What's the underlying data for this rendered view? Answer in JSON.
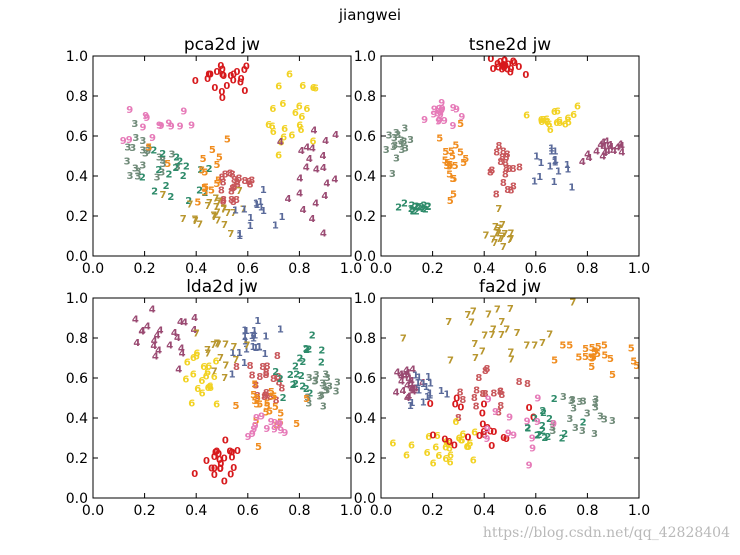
{
  "figure": {
    "suptitle": "jiangwei",
    "watermark": "https://blog.csdn.net/qq_42828404"
  },
  "class_colors": {
    "0": "#d7191c",
    "1": "#5a6a9a",
    "2": "#2e8b6a",
    "3": "#6f8a78",
    "4": "#9a4a72",
    "5": "#f08c1e",
    "6": "#f2d222",
    "7": "#b8962e",
    "8": "#c8565a",
    "9": "#e67ab8"
  },
  "chart_data": [
    {
      "type": "scatter",
      "title": "pca2d jw",
      "xlim": [
        0,
        1
      ],
      "ylim": [
        0,
        1
      ],
      "xticks": [
        "0.0",
        "0.2",
        "0.4",
        "0.6",
        "0.8",
        "1.0"
      ],
      "yticks": [
        "0.0",
        "0.2",
        "0.4",
        "0.6",
        "0.8",
        "1.0"
      ],
      "clusters": [
        {
          "label": "0",
          "cx": 0.52,
          "cy": 0.88,
          "sx": 0.06,
          "sy": 0.04,
          "n": 22
        },
        {
          "label": "6",
          "cx": 0.78,
          "cy": 0.65,
          "sx": 0.05,
          "sy": 0.12,
          "n": 22
        },
        {
          "label": "4",
          "cx": 0.85,
          "cy": 0.38,
          "sx": 0.06,
          "sy": 0.14,
          "n": 22
        },
        {
          "label": "3",
          "cx": 0.2,
          "cy": 0.47,
          "sx": 0.06,
          "sy": 0.07,
          "n": 22
        },
        {
          "label": "2",
          "cx": 0.33,
          "cy": 0.36,
          "sx": 0.08,
          "sy": 0.07,
          "n": 18
        },
        {
          "label": "9",
          "cx": 0.25,
          "cy": 0.65,
          "sx": 0.07,
          "sy": 0.06,
          "n": 14
        },
        {
          "label": "5",
          "cx": 0.4,
          "cy": 0.42,
          "sx": 0.08,
          "sy": 0.1,
          "n": 16
        },
        {
          "label": "8",
          "cx": 0.55,
          "cy": 0.33,
          "sx": 0.05,
          "sy": 0.06,
          "n": 22
        },
        {
          "label": "7",
          "cx": 0.48,
          "cy": 0.22,
          "sx": 0.06,
          "sy": 0.06,
          "n": 24
        },
        {
          "label": "1",
          "cx": 0.62,
          "cy": 0.2,
          "sx": 0.05,
          "sy": 0.05,
          "n": 14
        }
      ]
    },
    {
      "type": "scatter",
      "title": "tsne2d jw",
      "xlim": [
        0,
        1
      ],
      "ylim": [
        0,
        1
      ],
      "xticks": [
        "0.0",
        "0.2",
        "0.4",
        "0.6",
        "0.8",
        "1.0"
      ],
      "yticks": [
        "0.0",
        "0.2",
        "0.4",
        "0.6",
        "0.8",
        "1.0"
      ],
      "clusters": [
        {
          "label": "0",
          "cx": 0.48,
          "cy": 0.94,
          "sx": 0.03,
          "sy": 0.025,
          "n": 22
        },
        {
          "label": "9",
          "cx": 0.23,
          "cy": 0.69,
          "sx": 0.03,
          "sy": 0.035,
          "n": 16
        },
        {
          "label": "6",
          "cx": 0.68,
          "cy": 0.68,
          "sx": 0.04,
          "sy": 0.03,
          "n": 18
        },
        {
          "label": "3",
          "cx": 0.07,
          "cy": 0.53,
          "sx": 0.025,
          "sy": 0.04,
          "n": 16
        },
        {
          "label": "5",
          "cx": 0.28,
          "cy": 0.47,
          "sx": 0.03,
          "sy": 0.08,
          "n": 20
        },
        {
          "label": "8",
          "cx": 0.48,
          "cy": 0.42,
          "sx": 0.035,
          "sy": 0.06,
          "n": 20
        },
        {
          "label": "1",
          "cx": 0.65,
          "cy": 0.43,
          "sx": 0.04,
          "sy": 0.04,
          "n": 16
        },
        {
          "label": "4",
          "cx": 0.88,
          "cy": 0.51,
          "sx": 0.05,
          "sy": 0.03,
          "n": 18
        },
        {
          "label": "2",
          "cx": 0.14,
          "cy": 0.23,
          "sx": 0.035,
          "sy": 0.02,
          "n": 16
        },
        {
          "label": "7",
          "cx": 0.47,
          "cy": 0.09,
          "sx": 0.03,
          "sy": 0.04,
          "n": 18
        }
      ]
    },
    {
      "type": "scatter",
      "title": "lda2d jw",
      "xlim": [
        0,
        1
      ],
      "ylim": [
        0,
        1
      ],
      "xticks": [
        "0.0",
        "0.2",
        "0.4",
        "0.6",
        "0.8",
        "1.0"
      ],
      "yticks": [
        "0.0",
        "0.2",
        "0.4",
        "0.6",
        "0.8",
        "1.0"
      ],
      "clusters": [
        {
          "label": "4",
          "cx": 0.25,
          "cy": 0.76,
          "sx": 0.09,
          "sy": 0.08,
          "n": 22
        },
        {
          "label": "6",
          "cx": 0.42,
          "cy": 0.56,
          "sx": 0.04,
          "sy": 0.07,
          "n": 20
        },
        {
          "label": "0",
          "cx": 0.5,
          "cy": 0.15,
          "sx": 0.04,
          "sy": 0.05,
          "n": 22
        },
        {
          "label": "1",
          "cx": 0.63,
          "cy": 0.78,
          "sx": 0.04,
          "sy": 0.07,
          "n": 22
        },
        {
          "label": "8",
          "cx": 0.67,
          "cy": 0.58,
          "sx": 0.04,
          "sy": 0.06,
          "n": 20
        },
        {
          "label": "2",
          "cx": 0.82,
          "cy": 0.63,
          "sx": 0.05,
          "sy": 0.07,
          "n": 20
        },
        {
          "label": "3",
          "cx": 0.89,
          "cy": 0.54,
          "sx": 0.04,
          "sy": 0.04,
          "n": 18
        },
        {
          "label": "5",
          "cx": 0.67,
          "cy": 0.44,
          "sx": 0.05,
          "sy": 0.05,
          "n": 22
        },
        {
          "label": "9",
          "cx": 0.66,
          "cy": 0.34,
          "sx": 0.05,
          "sy": 0.03,
          "n": 14
        },
        {
          "label": "7",
          "cx": 0.48,
          "cy": 0.72,
          "sx": 0.05,
          "sy": 0.06,
          "n": 14
        }
      ]
    },
    {
      "type": "scatter",
      "title": "fa2d jw",
      "xlim": [
        0,
        1
      ],
      "ylim": [
        0,
        1
      ],
      "xticks": [
        "0.0",
        "0.2",
        "0.4",
        "0.6",
        "0.8",
        "1.0"
      ],
      "yticks": [
        "0.0",
        "0.2",
        "0.4",
        "0.6",
        "0.8",
        "1.0"
      ],
      "clusters": [
        {
          "label": "7",
          "cx": 0.42,
          "cy": 0.78,
          "sx": 0.16,
          "sy": 0.09,
          "n": 26
        },
        {
          "label": "5",
          "cx": 0.84,
          "cy": 0.69,
          "sx": 0.08,
          "sy": 0.05,
          "n": 22
        },
        {
          "label": "4",
          "cx": 0.11,
          "cy": 0.56,
          "sx": 0.03,
          "sy": 0.05,
          "n": 22
        },
        {
          "label": "1",
          "cx": 0.17,
          "cy": 0.54,
          "sx": 0.04,
          "sy": 0.06,
          "n": 16
        },
        {
          "label": "8",
          "cx": 0.42,
          "cy": 0.5,
          "sx": 0.1,
          "sy": 0.07,
          "n": 20
        },
        {
          "label": "6",
          "cx": 0.25,
          "cy": 0.24,
          "sx": 0.07,
          "sy": 0.07,
          "n": 26
        },
        {
          "label": "0",
          "cx": 0.4,
          "cy": 0.38,
          "sx": 0.08,
          "sy": 0.07,
          "n": 22
        },
        {
          "label": "3",
          "cx": 0.75,
          "cy": 0.4,
          "sx": 0.08,
          "sy": 0.07,
          "n": 20
        },
        {
          "label": "2",
          "cx": 0.62,
          "cy": 0.34,
          "sx": 0.08,
          "sy": 0.06,
          "n": 16
        },
        {
          "label": "9",
          "cx": 0.48,
          "cy": 0.32,
          "sx": 0.08,
          "sy": 0.09,
          "n": 14
        }
      ]
    }
  ]
}
